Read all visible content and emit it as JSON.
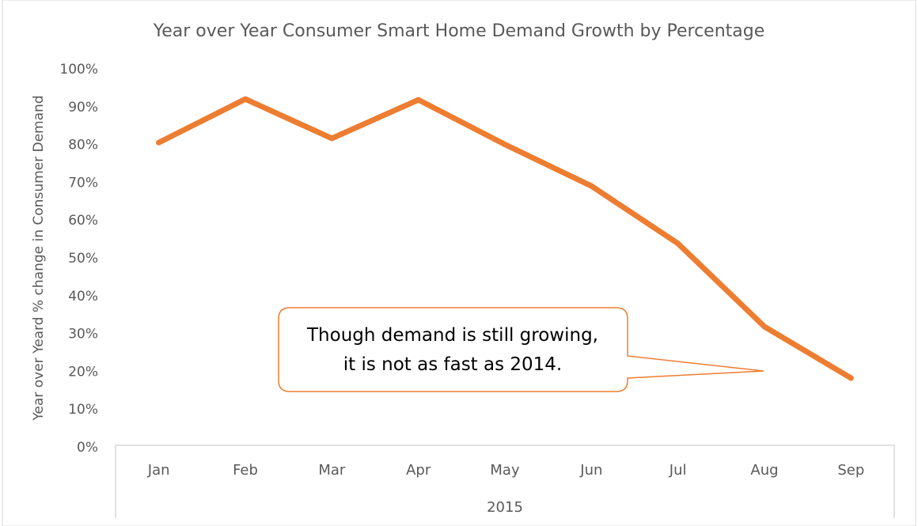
{
  "chart_data": {
    "type": "line",
    "title": "Year over Year Consumer Smart Home Demand Growth by Percentage",
    "ylabel": "Year over Yeard % change in Consumer Demand",
    "xlabel": "2015",
    "categories": [
      "Jan",
      "Feb",
      "Mar",
      "Apr",
      "May",
      "Jun",
      "Jul",
      "Aug",
      "Sep"
    ],
    "values": [
      80.5,
      92,
      81.6,
      91.8,
      80,
      69,
      53.8,
      31.8,
      18.2
    ],
    "ylim": [
      0,
      100
    ],
    "yticks": [
      "0%",
      "10%",
      "20%",
      "30%",
      "40%",
      "50%",
      "60%",
      "70%",
      "80%",
      "90%",
      "100%"
    ],
    "grid": false,
    "line_color": "#ED7D31",
    "annotation": {
      "lines": [
        "Though demand is still growing,",
        "it is not as fast as 2014."
      ],
      "points_to": "Aug"
    }
  }
}
